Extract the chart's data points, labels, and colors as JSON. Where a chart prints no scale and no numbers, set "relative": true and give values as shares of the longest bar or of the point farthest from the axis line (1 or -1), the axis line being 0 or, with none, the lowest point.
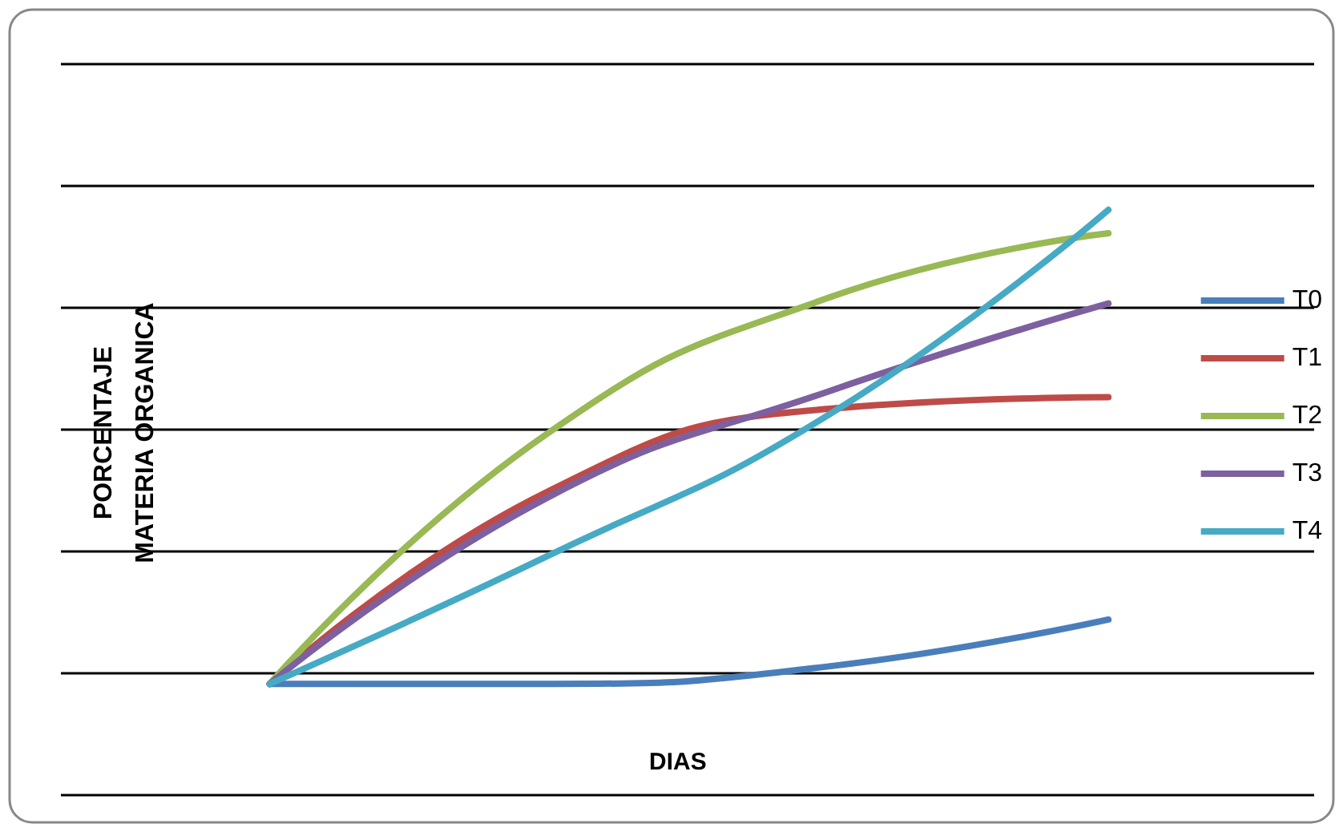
{
  "chart_data": {
    "type": "line",
    "xlabel": "DIAS",
    "ylabel": "PORCENTAJE\nMATERIA ORGANICA",
    "relative": true,
    "grid": true,
    "legend": "right",
    "marker": "none",
    "line_style": "solid",
    "categories": [
      null,
      null,
      null,
      null
    ],
    "series": [
      {
        "name": "T0",
        "color": "#4a7ebb",
        "values": [
          0.19,
          0.19,
          0.22,
          0.3
        ]
      },
      {
        "name": "T1",
        "color": "#be4b48",
        "values": [
          0.19,
          0.52,
          0.66,
          0.68
        ]
      },
      {
        "name": "T2",
        "color": "#98b954",
        "values": [
          0.19,
          0.62,
          0.85,
          0.96
        ]
      },
      {
        "name": "T3",
        "color": "#7d60a0",
        "values": [
          0.19,
          0.51,
          0.69,
          0.84
        ]
      },
      {
        "name": "T4",
        "color": "#46aac5",
        "values": [
          0.19,
          0.41,
          0.65,
          1
        ]
      }
    ]
  }
}
